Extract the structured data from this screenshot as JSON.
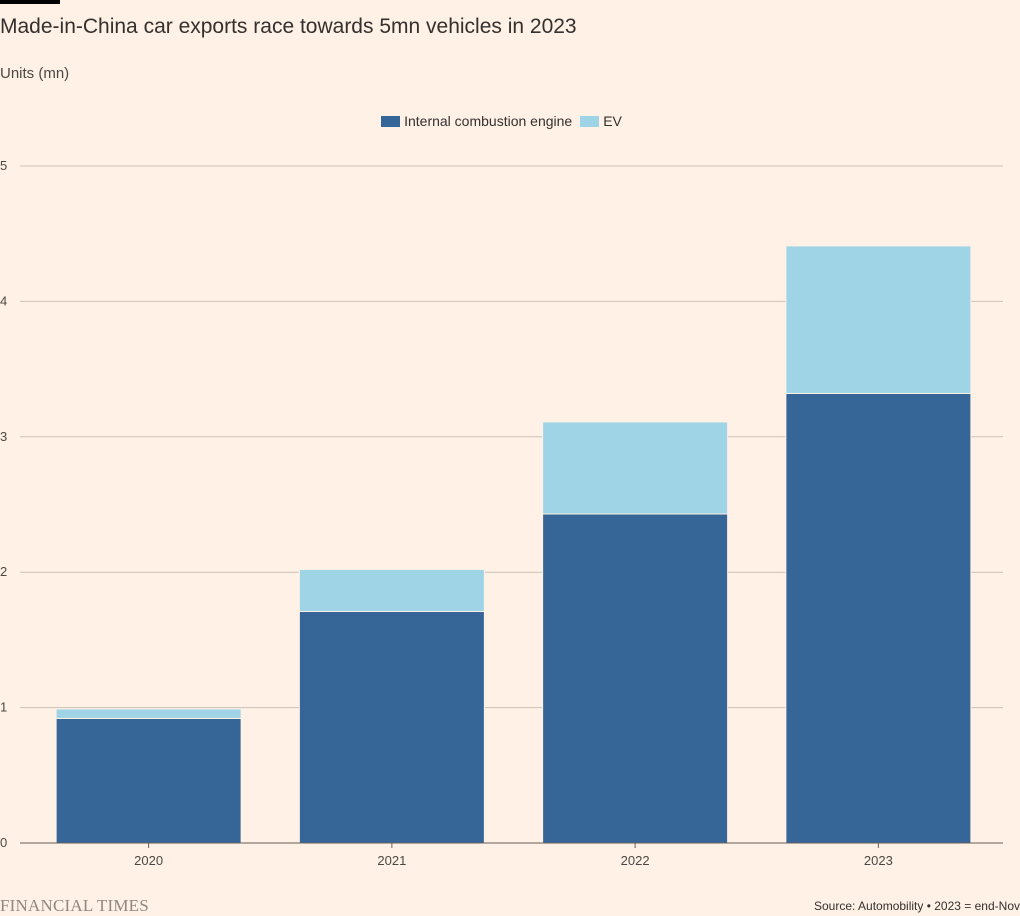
{
  "title": "Made-in-China car exports race towards 5mn vehicles in 2023",
  "subtitle": "Units (mn)",
  "brand": "FINANCIAL TIMES",
  "source": "Source: Automobility • 2023 = end-Nov",
  "colors": {
    "background": "#FFF1E5",
    "ice": "#356697",
    "ev": "#9ED4E6",
    "grid": "#CCC1B7",
    "axis_text": "#4B4844"
  },
  "chart_data": {
    "type": "bar",
    "stacked": true,
    "categories": [
      "2020",
      "2021",
      "2022",
      "2023"
    ],
    "series": [
      {
        "name": "Internal combustion engine",
        "values": [
          0.92,
          1.71,
          2.43,
          3.32
        ]
      },
      {
        "name": "EV",
        "values": [
          0.07,
          0.31,
          0.68,
          1.09
        ]
      }
    ],
    "ylim": [
      0,
      5
    ],
    "yticks": [
      0,
      1,
      2,
      3,
      4,
      5
    ],
    "ylabel": "Units (mn)",
    "xlabel": "",
    "grid": true,
    "legend": "top-center"
  }
}
